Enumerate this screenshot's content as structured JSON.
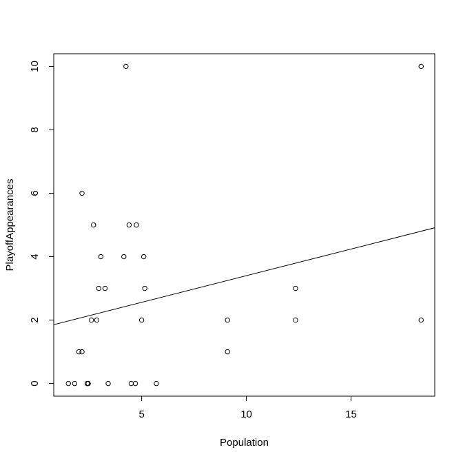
{
  "chart_data": {
    "type": "scatter",
    "title": "",
    "xlabel": "Population",
    "ylabel": "PlayoffAppearances",
    "xlim": [
      0.8,
      19.0
    ],
    "ylim": [
      -0.4,
      10.4
    ],
    "xticks": [
      5,
      10,
      15
    ],
    "yticks": [
      0,
      2,
      4,
      6,
      8,
      10
    ],
    "grid": false,
    "points": [
      {
        "x": 1.5,
        "y": 0
      },
      {
        "x": 1.8,
        "y": 0
      },
      {
        "x": 2.4,
        "y": 0
      },
      {
        "x": 2.4,
        "y": 0
      },
      {
        "x": 2.45,
        "y": 0
      },
      {
        "x": 3.4,
        "y": 0
      },
      {
        "x": 4.5,
        "y": 0
      },
      {
        "x": 4.7,
        "y": 0
      },
      {
        "x": 5.7,
        "y": 0
      },
      {
        "x": 2.0,
        "y": 1
      },
      {
        "x": 2.15,
        "y": 1
      },
      {
        "x": 9.1,
        "y": 1
      },
      {
        "x": 2.6,
        "y": 2
      },
      {
        "x": 2.85,
        "y": 2
      },
      {
        "x": 5.0,
        "y": 2
      },
      {
        "x": 9.1,
        "y": 2
      },
      {
        "x": 12.35,
        "y": 2
      },
      {
        "x": 18.35,
        "y": 2
      },
      {
        "x": 2.95,
        "y": 3
      },
      {
        "x": 3.25,
        "y": 3
      },
      {
        "x": 5.15,
        "y": 3
      },
      {
        "x": 12.35,
        "y": 3
      },
      {
        "x": 3.05,
        "y": 4
      },
      {
        "x": 4.15,
        "y": 4
      },
      {
        "x": 5.1,
        "y": 4
      },
      {
        "x": 2.7,
        "y": 5
      },
      {
        "x": 4.4,
        "y": 5
      },
      {
        "x": 4.75,
        "y": 5
      },
      {
        "x": 2.15,
        "y": 6
      },
      {
        "x": 4.25,
        "y": 10
      },
      {
        "x": 18.35,
        "y": 10
      }
    ],
    "regression_line": {
      "intercept": 1.72,
      "slope": 0.168
    }
  }
}
